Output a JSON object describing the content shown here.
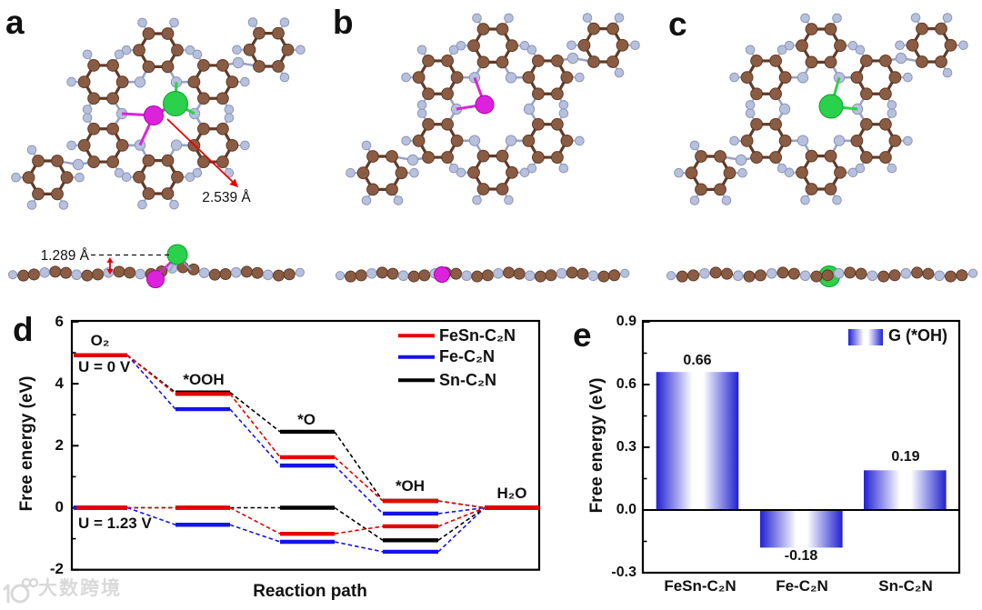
{
  "figure": {
    "panel_labels": {
      "a": "a",
      "b": "b",
      "c": "c",
      "d": "d",
      "e": "e"
    },
    "watermark_text": "大数跨境"
  },
  "molecule_panels": {
    "a": {
      "description": "FeSn-C2N top view and side view",
      "distance_annotation": "2.539 Å",
      "height_annotation": "1.289 Å",
      "metal_atoms": [
        {
          "element": "Fe",
          "color": "#dd22dd"
        },
        {
          "element": "Sn",
          "color": "#2ad14a"
        }
      ]
    },
    "b": {
      "description": "Fe-C2N top view and side view",
      "metal_atoms": [
        {
          "element": "Fe",
          "color": "#dd22dd"
        }
      ]
    },
    "c": {
      "description": "Sn-C2N top view and side view",
      "metal_atoms": [
        {
          "element": "Sn",
          "color": "#2ad14a"
        }
      ]
    }
  },
  "atom_colors": {
    "carbon": "#8a5c44",
    "carbon_edge": "#5f3b28",
    "nitrogen_hydrogen": "#b7c0dd",
    "nitrogen_hydrogen_edge": "#8d96b8",
    "iron": "#dd22dd",
    "iron_edge": "#a800a8",
    "tin": "#2ad14a",
    "tin_edge": "#0f9c30"
  },
  "chart_data": [
    {
      "id": "d",
      "type": "line",
      "xlabel": "Reaction path",
      "ylabel": "Free energy (eV)",
      "ylim": [
        -2,
        6
      ],
      "ytick_labels": [
        "6",
        "4",
        "2",
        "0",
        "-2"
      ],
      "stations": [
        "O₂",
        "*OOH",
        "*O",
        "*OH",
        "H₂O"
      ],
      "condition_labels": [
        "U = 0 V",
        "U = 1.23 V"
      ],
      "legend_position": "top-right",
      "legend": [
        {
          "label": "FeSn-C₂N",
          "color": "#e60000"
        },
        {
          "label": "Fe-C₂N",
          "color": "#1414e6"
        },
        {
          "label": "Sn-C₂N",
          "color": "#000000"
        }
      ],
      "series": [
        {
          "name": "FeSn-C₂N",
          "condition": "U = 0 V",
          "color": "#e60000",
          "values": [
            4.92,
            3.67,
            1.63,
            0.22,
            0.0
          ]
        },
        {
          "name": "Fe-C₂N",
          "condition": "U = 0 V",
          "color": "#1414e6",
          "values": [
            4.92,
            3.18,
            1.36,
            -0.19,
            0.0
          ]
        },
        {
          "name": "Sn-C₂N",
          "condition": "U = 0 V",
          "color": "#000000",
          "values": [
            4.92,
            3.72,
            2.45,
            0.22,
            0.0
          ]
        },
        {
          "name": "FeSn-C₂N",
          "condition": "U = 1.23 V",
          "color": "#e60000",
          "values": [
            0.0,
            0.0,
            -0.84,
            -0.6,
            0.0
          ]
        },
        {
          "name": "Fe-C₂N",
          "condition": "U = 1.23 V",
          "color": "#1414e6",
          "values": [
            0.0,
            -0.55,
            -1.1,
            -1.42,
            0.0
          ]
        },
        {
          "name": "Sn-C₂N",
          "condition": "U = 1.23 V",
          "color": "#000000",
          "values": [
            0.0,
            0.0,
            0.0,
            -1.05,
            0.0
          ]
        }
      ]
    },
    {
      "id": "e",
      "type": "bar",
      "ylabel": "Free energy (eV)",
      "ylim": [
        -0.3,
        0.9
      ],
      "ytick_labels": [
        "0.9",
        "0.6",
        "0.3",
        "0.0",
        "-0.3"
      ],
      "categories": [
        "FeSn-C₂N",
        "Fe-C₂N",
        "Sn-C₂N"
      ],
      "values": [
        0.66,
        -0.18,
        0.19
      ],
      "value_labels": [
        "0.66",
        "-0.18",
        "0.19"
      ],
      "legend_label": "G (*OH)",
      "bar_color": "#2121d3"
    }
  ]
}
